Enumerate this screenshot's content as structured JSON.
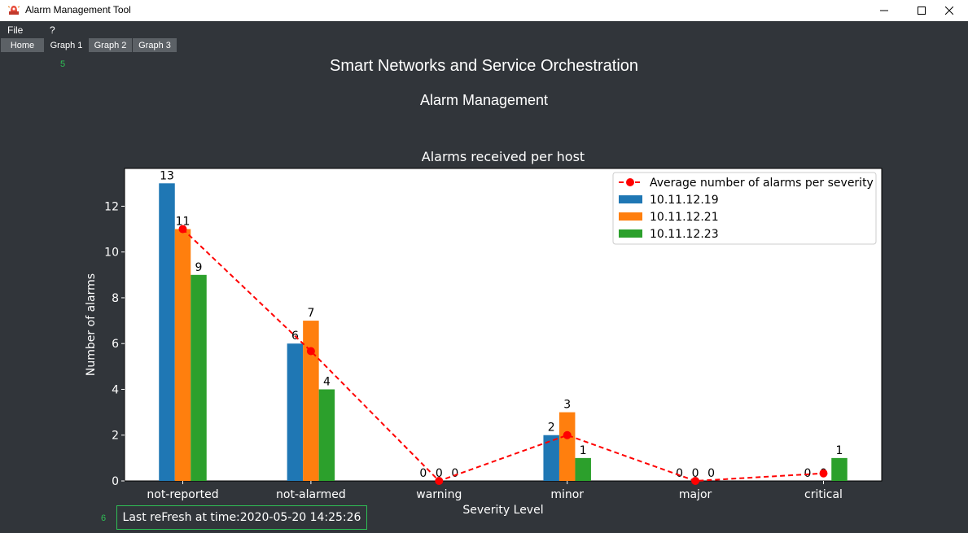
{
  "window": {
    "title": "Alarm Management Tool"
  },
  "menu": {
    "file": "File",
    "help": "?"
  },
  "tabs": [
    "Home",
    "Graph 1",
    "Graph 2",
    "Graph 3"
  ],
  "side_numbers": {
    "top": "5",
    "bottom": "6"
  },
  "header": {
    "title": "Smart Networks and Service Orchestration",
    "subtitle": "Alarm Management"
  },
  "chart_data": {
    "type": "bar",
    "title": "Alarms received per host",
    "xlabel": "Severity Level",
    "ylabel": "Number of alarms",
    "ylim": [
      0,
      13.65
    ],
    "yticks": [
      0,
      2,
      4,
      6,
      8,
      10,
      12
    ],
    "categories": [
      "not-reported",
      "not-alarmed",
      "warning",
      "minor",
      "major",
      "critical"
    ],
    "series": [
      {
        "name": "10.11.12.19",
        "color": "#1f77b4",
        "values": [
          13,
          6,
          0,
          2,
          0,
          0
        ]
      },
      {
        "name": "10.11.12.21",
        "color": "#ff7f0e",
        "values": [
          11,
          7,
          0,
          3,
          0,
          0
        ]
      },
      {
        "name": "10.11.12.23",
        "color": "#2ca02c",
        "values": [
          9,
          4,
          0,
          1,
          0,
          1
        ]
      }
    ],
    "average_line": {
      "name": "Average number of alarms per severity",
      "color": "#ff0000",
      "values": [
        11,
        5.67,
        0,
        2,
        0,
        0.33
      ]
    },
    "legend": "top-right"
  },
  "status": {
    "text": "Last reFresh at time:2020-05-20 14:25:26"
  },
  "colors": {
    "background": "#31353a",
    "accent": "#2fbf55"
  }
}
